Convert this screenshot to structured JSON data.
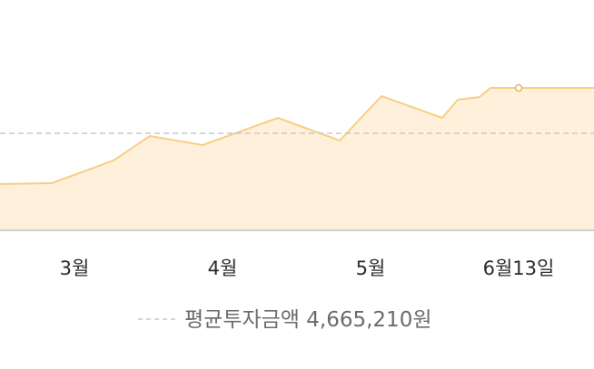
{
  "chart_data": {
    "type": "area",
    "title": "",
    "xlabel": "",
    "ylabel": "",
    "x_tick_labels": [
      "3월",
      "4월",
      "5월",
      "6월13일"
    ],
    "series": [
      {
        "x": [
          0,
          1,
          2,
          3,
          4,
          5,
          6,
          7,
          8,
          9,
          10,
          11,
          12,
          13,
          14,
          15,
          16
        ],
        "values": [
          2.9,
          2.95,
          3.55,
          4.75,
          4.45,
          5.2,
          4.6,
          5.85,
          5.5,
          5.45,
          6.75,
          6.7,
          5.65,
          6.8,
          6.2,
          6.8,
          6.8
        ]
      }
    ],
    "average": {
      "value": 4.66521,
      "label": "평균투자금액 4,665,210원"
    },
    "highlight_point_index": 15,
    "colors": {
      "line": "#f7cf86",
      "fill": "#fff0db",
      "average_line": "#c9c9c9",
      "baseline": "#cfcfcf",
      "point_stroke": "#e8b45a"
    },
    "grid": false,
    "legend_position": "bottom-center"
  }
}
